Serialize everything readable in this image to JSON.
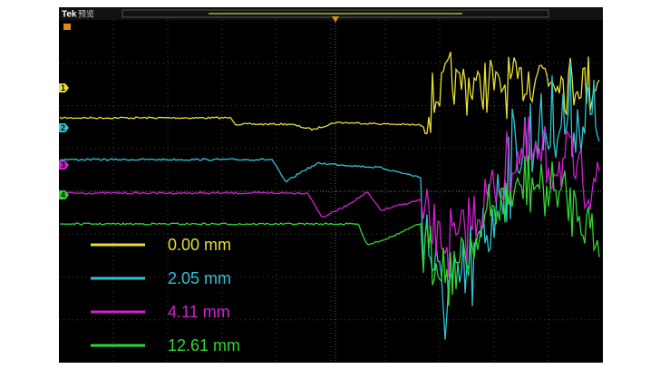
{
  "header": {
    "brand": "Tek",
    "mode": "预览"
  },
  "channels": [
    {
      "marker": "1",
      "color": "#e6e034"
    },
    {
      "marker": "2",
      "color": "#2ec4d4"
    },
    {
      "marker": "3",
      "color": "#d21fd2"
    },
    {
      "marker": "4",
      "color": "#2fd62f"
    }
  ],
  "legend": [
    {
      "label": "0.00 mm",
      "color": "#e6e034"
    },
    {
      "label": "2.05 mm",
      "color": "#2ec4d4"
    },
    {
      "label": "4.11 mm",
      "color": "#d21fd2"
    },
    {
      "label": "12.61 mm",
      "color": "#2fd62f"
    }
  ]
}
